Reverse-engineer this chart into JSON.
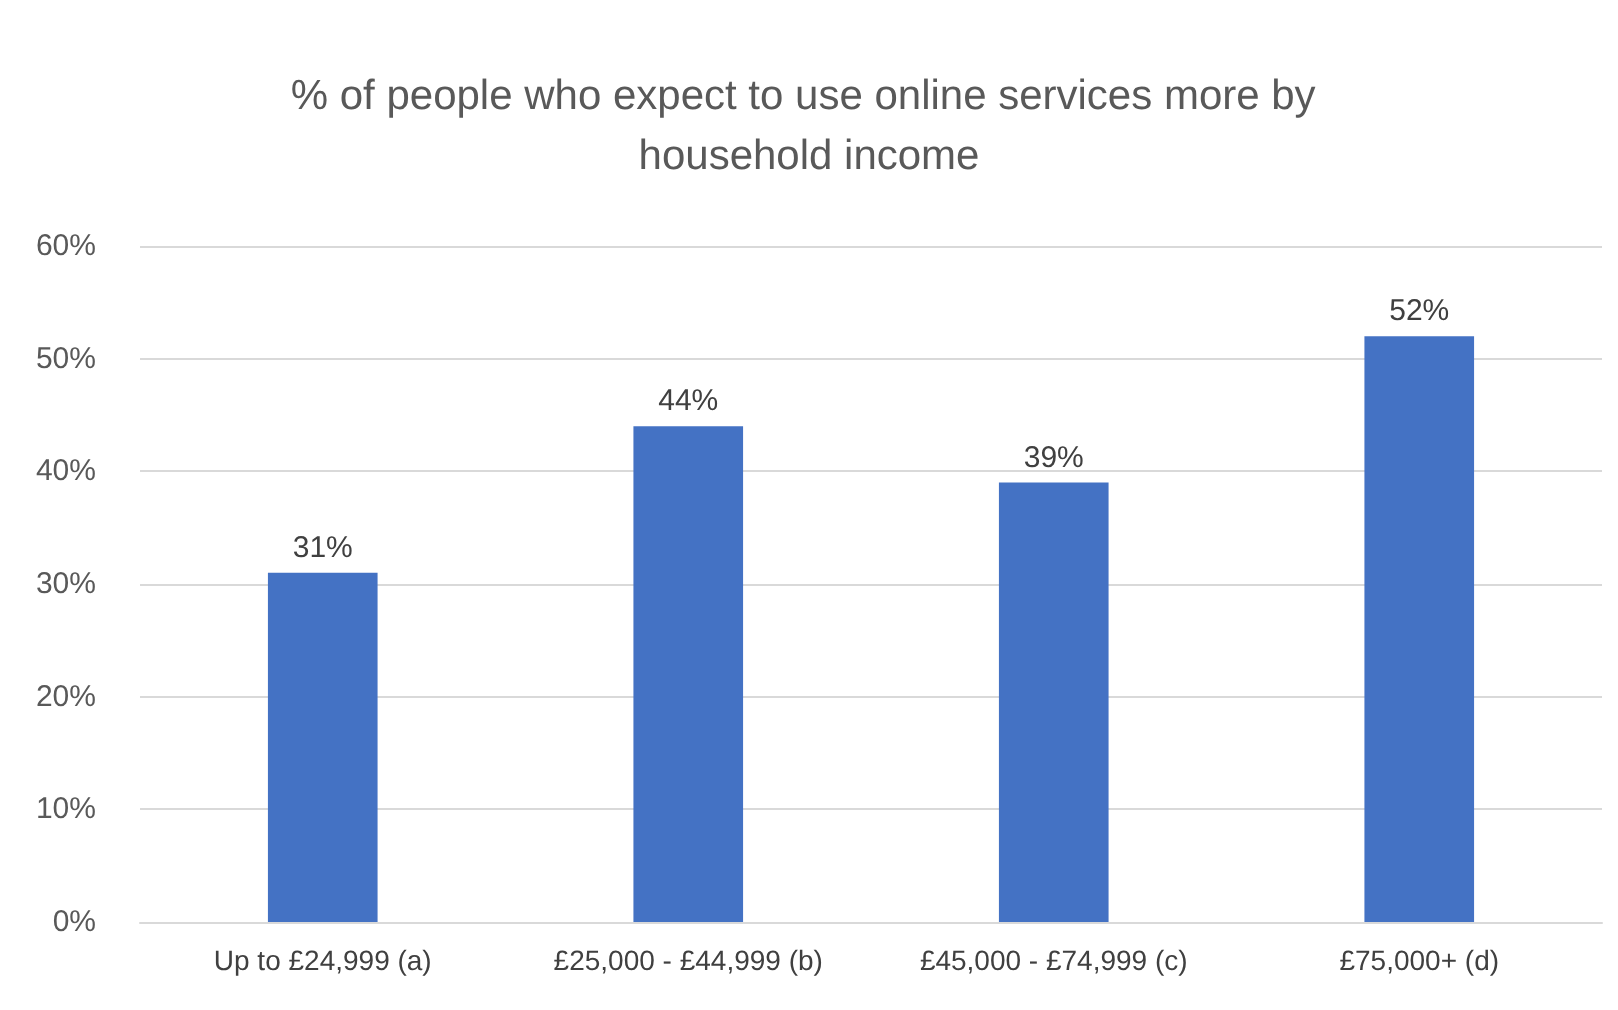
{
  "chart_data": {
    "type": "bar",
    "title": "% of people who expect to use online services more by household income",
    "categories": [
      "Up to £24,999 (a)",
      "£25,000 - £44,999 (b)",
      "£45,000 - £74,999 (c)",
      "£75,000+ (d)"
    ],
    "values": [
      31,
      44,
      39,
      52
    ],
    "color": "#4472c4",
    "value_labels": [
      "31%",
      "44%",
      "39%",
      "52%"
    ],
    "ylim": [
      0,
      60
    ],
    "yticks": [
      {
        "value": 0,
        "label": "0%"
      },
      {
        "value": 10,
        "label": "10%"
      },
      {
        "value": 20,
        "label": "20%"
      },
      {
        "value": 30,
        "label": "30%"
      },
      {
        "value": 40,
        "label": "40%"
      },
      {
        "value": 50,
        "label": "50%"
      },
      {
        "value": 60,
        "label": "60%"
      }
    ],
    "grid": "y"
  }
}
